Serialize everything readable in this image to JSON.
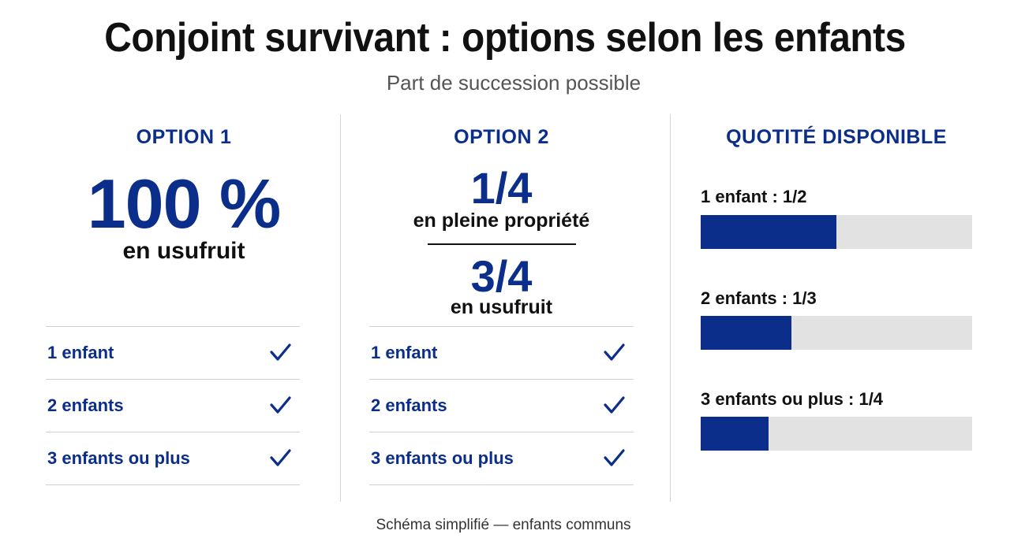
{
  "title": "Conjoint survivant : options selon les enfants",
  "subtitle": "Part de succession possible",
  "option1": {
    "heading": "OPTION 1",
    "value": "100 %",
    "value_label": "en usufruit",
    "rows": [
      {
        "label": "1 enfant"
      },
      {
        "label": "2 enfants"
      },
      {
        "label": "3 enfants ou plus"
      }
    ]
  },
  "option2": {
    "heading": "OPTION 2",
    "top_value": "1/4",
    "top_label": "en pleine propriété",
    "bottom_value": "3/4",
    "bottom_label": "en usufruit",
    "rows": [
      {
        "label": "1 enfant"
      },
      {
        "label": "2 enfants"
      },
      {
        "label": "3 enfants ou plus"
      }
    ]
  },
  "quotite": {
    "heading": "QUOTITÉ DISPONIBLE",
    "items": [
      {
        "label": "1 enfant : 1/2",
        "fraction": 0.5
      },
      {
        "label": "2 enfants : 1/3",
        "fraction": 0.3333
      },
      {
        "label": "3 enfants ou plus : 1/4",
        "fraction": 0.25
      }
    ]
  },
  "footer": "Schéma simplifié — enfants communs",
  "colors": {
    "accent": "#0b2e8a",
    "track": "#e2e2e2",
    "divider": "#d0d0d0"
  },
  "icons": {
    "check": "check-icon"
  }
}
